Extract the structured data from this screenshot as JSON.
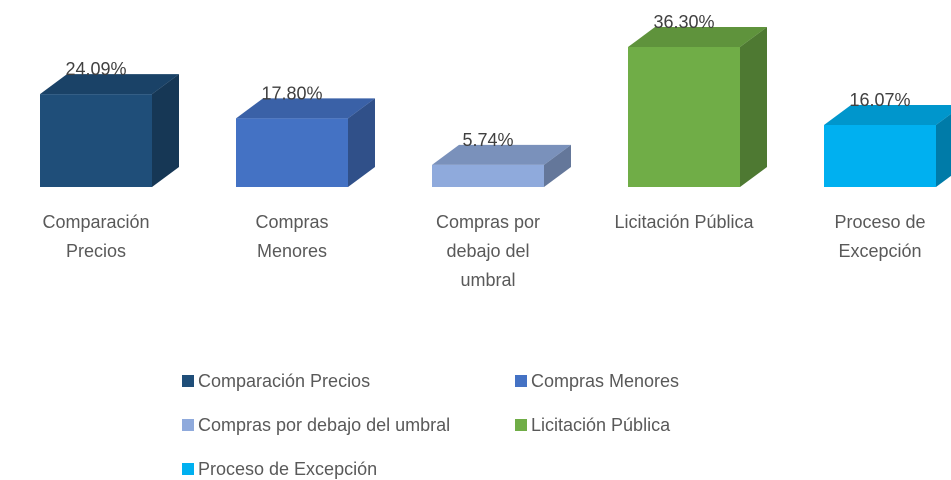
{
  "chart_data": {
    "type": "bar3d",
    "categories": [
      "Comparación Precios",
      "Compras Menores",
      "Compras por debajo del umbral",
      "Licitación Pública",
      "Proceso de Excepción"
    ],
    "values": [
      24.09,
      17.8,
      5.74,
      36.3,
      16.07
    ],
    "value_labels": [
      "24.09%",
      "17.80%",
      "5.74%",
      "36.30%",
      "16.07%"
    ],
    "colors": [
      "#1f4e79",
      "#4472c4",
      "#8faadc",
      "#70ad47",
      "#00b0f0"
    ],
    "legend": "bottom"
  }
}
